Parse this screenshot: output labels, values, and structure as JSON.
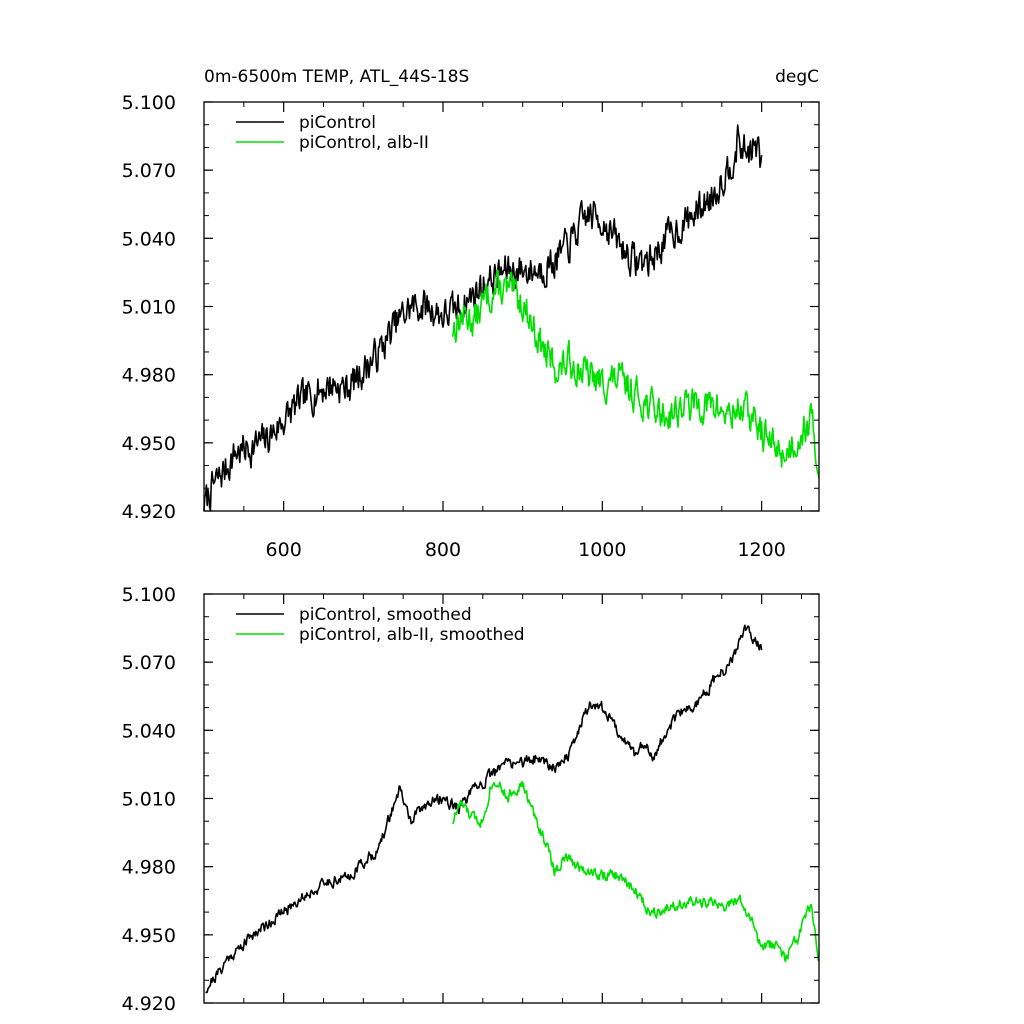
{
  "chart_data": [
    {
      "type": "line",
      "title": "0m-6500m TEMP, ATL_44S-18S",
      "units": "degC",
      "xlim": [
        500,
        1272
      ],
      "ylim": [
        4.92,
        5.1
      ],
      "yticks": [
        "4.920",
        "4.950",
        "4.980",
        "5.010",
        "5.040",
        "5.070",
        "5.100"
      ],
      "xticks": [
        "600",
        "800",
        "1000",
        "1200"
      ],
      "legend": [
        "piControl",
        "piControl, alb-II"
      ],
      "legend_position": "top-left",
      "series": [
        {
          "name": "piControl",
          "color": "#000000",
          "anchors": [
            [
              500,
              4.922
            ],
            [
              510,
              4.93
            ],
            [
              520,
              4.935
            ],
            [
              530,
              4.94
            ],
            [
              540,
              4.946
            ],
            [
              560,
              4.948
            ],
            [
              580,
              4.952
            ],
            [
              600,
              4.96
            ],
            [
              620,
              4.968
            ],
            [
              640,
              4.972
            ],
            [
              660,
              4.976
            ],
            [
              680,
              4.974
            ],
            [
              700,
              4.982
            ],
            [
              720,
              4.99
            ],
            [
              740,
              5.002
            ],
            [
              760,
              5.01
            ],
            [
              780,
              5.01
            ],
            [
              800,
              5.006
            ],
            [
              820,
              5.009
            ],
            [
              840,
              5.016
            ],
            [
              860,
              5.022
            ],
            [
              880,
              5.026
            ],
            [
              900,
              5.026
            ],
            [
              920,
              5.026
            ],
            [
              940,
              5.03
            ],
            [
              960,
              5.038
            ],
            [
              980,
              5.05
            ],
            [
              990,
              5.05
            ],
            [
              1000,
              5.048
            ],
            [
              1020,
              5.038
            ],
            [
              1040,
              5.03
            ],
            [
              1060,
              5.03
            ],
            [
              1080,
              5.04
            ],
            [
              1100,
              5.046
            ],
            [
              1120,
              5.052
            ],
            [
              1140,
              5.06
            ],
            [
              1160,
              5.072
            ],
            [
              1170,
              5.082
            ],
            [
              1180,
              5.078
            ],
            [
              1195,
              5.08
            ],
            [
              1200,
              5.07
            ]
          ],
          "noise": 0.0065,
          "seed": 7
        },
        {
          "name": "piControl, alb-II",
          "color": "#00e000",
          "anchors": [
            [
              812,
              5.0
            ],
            [
              825,
              5.006
            ],
            [
              840,
              5.004
            ],
            [
              855,
              5.014
            ],
            [
              870,
              5.018
            ],
            [
              885,
              5.016
            ],
            [
              900,
              5.012
            ],
            [
              915,
              5.0
            ],
            [
              930,
              4.988
            ],
            [
              945,
              4.982
            ],
            [
              960,
              4.986
            ],
            [
              980,
              4.98
            ],
            [
              1000,
              4.976
            ],
            [
              1020,
              4.978
            ],
            [
              1040,
              4.972
            ],
            [
              1060,
              4.966
            ],
            [
              1080,
              4.962
            ],
            [
              1100,
              4.966
            ],
            [
              1120,
              4.967
            ],
            [
              1140,
              4.966
            ],
            [
              1160,
              4.962
            ],
            [
              1175,
              4.966
            ],
            [
              1190,
              4.96
            ],
            [
              1210,
              4.95
            ],
            [
              1230,
              4.945
            ],
            [
              1250,
              4.955
            ],
            [
              1262,
              4.96
            ],
            [
              1272,
              4.938
            ]
          ],
          "noise": 0.0065,
          "seed": 13
        }
      ]
    },
    {
      "type": "line",
      "xlim": [
        500,
        1272
      ],
      "ylim": [
        4.92,
        5.1
      ],
      "yticks": [
        "4.920",
        "4.950",
        "4.980",
        "5.010",
        "5.040",
        "5.070",
        "5.100"
      ],
      "legend": [
        "piControl, smoothed",
        "piControl, alb-II, smoothed"
      ],
      "legend_position": "top-left",
      "series": [
        {
          "name": "piControl, smoothed",
          "color": "#000000",
          "anchors": [
            [
              502,
              4.926
            ],
            [
              510,
              4.93
            ],
            [
              520,
              4.934
            ],
            [
              530,
              4.94
            ],
            [
              545,
              4.944
            ],
            [
              560,
              4.95
            ],
            [
              580,
              4.955
            ],
            [
              600,
              4.96
            ],
            [
              620,
              4.966
            ],
            [
              640,
              4.97
            ],
            [
              660,
              4.974
            ],
            [
              680,
              4.975
            ],
            [
              700,
              4.982
            ],
            [
              720,
              4.988
            ],
            [
              735,
              5.004
            ],
            [
              745,
              5.014
            ],
            [
              760,
              5.0
            ],
            [
              780,
              5.008
            ],
            [
              800,
              5.01
            ],
            [
              820,
              5.006
            ],
            [
              840,
              5.014
            ],
            [
              860,
              5.02
            ],
            [
              880,
              5.026
            ],
            [
              900,
              5.026
            ],
            [
              920,
              5.028
            ],
            [
              940,
              5.024
            ],
            [
              960,
              5.03
            ],
            [
              975,
              5.045
            ],
            [
              985,
              5.052
            ],
            [
              1000,
              5.05
            ],
            [
              1020,
              5.04
            ],
            [
              1040,
              5.03
            ],
            [
              1055,
              5.034
            ],
            [
              1065,
              5.028
            ],
            [
              1080,
              5.04
            ],
            [
              1100,
              5.048
            ],
            [
              1120,
              5.052
            ],
            [
              1140,
              5.062
            ],
            [
              1160,
              5.068
            ],
            [
              1170,
              5.078
            ],
            [
              1180,
              5.084
            ],
            [
              1195,
              5.078
            ],
            [
              1200,
              5.076
            ]
          ],
          "noise": 0.0022,
          "seed": 21
        },
        {
          "name": "piControl, alb-II, smoothed",
          "color": "#00e000",
          "anchors": [
            [
              812,
              5.0
            ],
            [
              822,
              5.008
            ],
            [
              835,
              5.002
            ],
            [
              850,
              5.0
            ],
            [
              860,
              5.016
            ],
            [
              870,
              5.018
            ],
            [
              880,
              5.01
            ],
            [
              890,
              5.014
            ],
            [
              900,
              5.016
            ],
            [
              915,
              5.002
            ],
            [
              930,
              4.99
            ],
            [
              940,
              4.978
            ],
            [
              955,
              4.984
            ],
            [
              970,
              4.98
            ],
            [
              985,
              4.978
            ],
            [
              1000,
              4.976
            ],
            [
              1020,
              4.976
            ],
            [
              1040,
              4.97
            ],
            [
              1060,
              4.96
            ],
            [
              1080,
              4.962
            ],
            [
              1100,
              4.964
            ],
            [
              1120,
              4.964
            ],
            [
              1140,
              4.964
            ],
            [
              1155,
              4.962
            ],
            [
              1170,
              4.966
            ],
            [
              1185,
              4.958
            ],
            [
              1200,
              4.944
            ],
            [
              1215,
              4.946
            ],
            [
              1230,
              4.94
            ],
            [
              1245,
              4.948
            ],
            [
              1255,
              4.958
            ],
            [
              1262,
              4.962
            ],
            [
              1272,
              4.938
            ]
          ],
          "noise": 0.0022,
          "seed": 33
        }
      ]
    }
  ]
}
